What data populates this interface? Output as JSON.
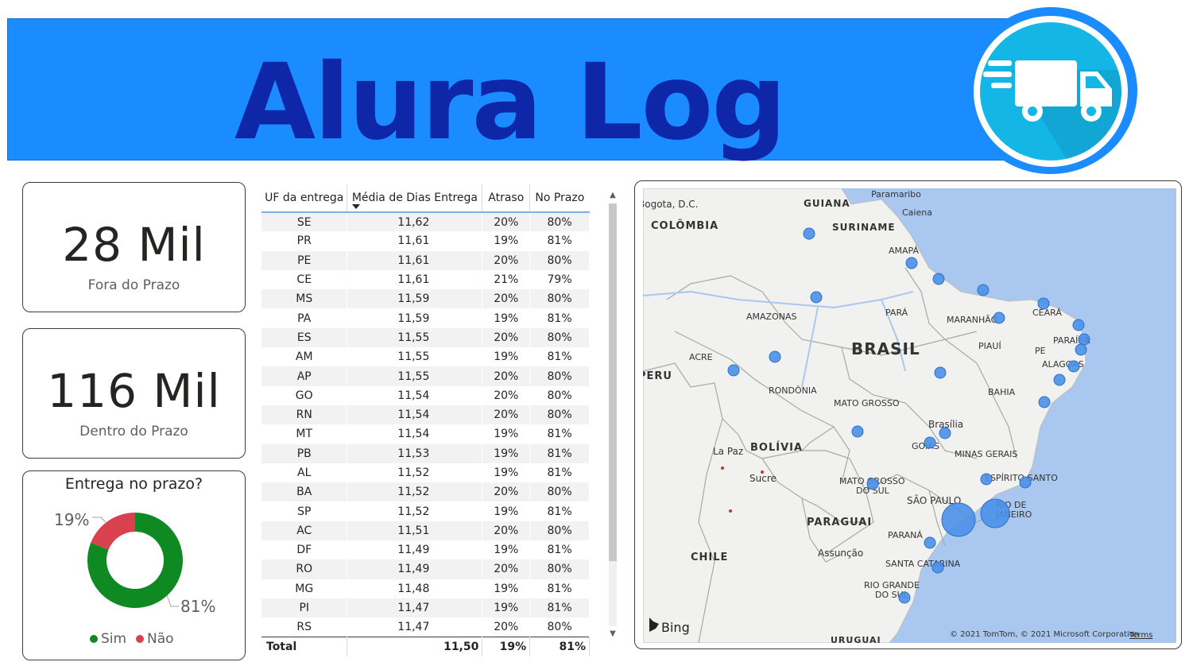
{
  "header": {
    "title": "Alura Log",
    "logo_icon": "delivery-truck-icon",
    "banner_color": "#1a8cff",
    "title_color": "#0e26a8"
  },
  "kpis": {
    "late": {
      "value": "28 Mil",
      "label": "Fora do Prazo"
    },
    "ontime": {
      "value": "116 Mil",
      "label": "Dentro do Prazo"
    }
  },
  "donut": {
    "title": "Entrega no prazo?",
    "slices": [
      {
        "name": "Sim",
        "percent": 81,
        "label": "81%",
        "color": "#0f8a23"
      },
      {
        "name": "Não",
        "percent": 19,
        "label": "19%",
        "color": "#d9414e"
      }
    ]
  },
  "table": {
    "columns": [
      "UF da entrega",
      "Média de Dias Entrega",
      "Atraso",
      "No Prazo"
    ],
    "rows": [
      [
        "SE",
        "11,62",
        "20%",
        "80%"
      ],
      [
        "PR",
        "11,61",
        "19%",
        "81%"
      ],
      [
        "PE",
        "11,61",
        "20%",
        "80%"
      ],
      [
        "CE",
        "11,61",
        "21%",
        "79%"
      ],
      [
        "MS",
        "11,59",
        "20%",
        "80%"
      ],
      [
        "PA",
        "11,59",
        "19%",
        "81%"
      ],
      [
        "ES",
        "11,55",
        "20%",
        "80%"
      ],
      [
        "AM",
        "11,55",
        "19%",
        "81%"
      ],
      [
        "AP",
        "11,55",
        "20%",
        "80%"
      ],
      [
        "GO",
        "11,54",
        "20%",
        "80%"
      ],
      [
        "RN",
        "11,54",
        "20%",
        "80%"
      ],
      [
        "MT",
        "11,54",
        "19%",
        "81%"
      ],
      [
        "PB",
        "11,53",
        "19%",
        "81%"
      ],
      [
        "AL",
        "11,52",
        "19%",
        "81%"
      ],
      [
        "BA",
        "11,52",
        "20%",
        "80%"
      ],
      [
        "SP",
        "11,52",
        "19%",
        "81%"
      ],
      [
        "AC",
        "11,51",
        "20%",
        "80%"
      ],
      [
        "DF",
        "11,49",
        "19%",
        "81%"
      ],
      [
        "RO",
        "11,49",
        "20%",
        "80%"
      ],
      [
        "MG",
        "11,48",
        "19%",
        "81%"
      ],
      [
        "PI",
        "11,47",
        "19%",
        "81%"
      ],
      [
        "RS",
        "11,47",
        "20%",
        "80%"
      ]
    ],
    "total": [
      "Total",
      "11,50",
      "19%",
      "81%"
    ]
  },
  "map": {
    "bubble_color": "#4a90e8",
    "bing_label": "Bing",
    "copyright": "© 2021 TomTom, © 2021 Microsoft Corporation",
    "terms": "Terms",
    "labels": [
      "Bogota, D.C.",
      "COLÔMBIA",
      "GUIANA",
      "Paramaribo",
      "Caiena",
      "SURINAME",
      "AMAPÁ",
      "AMAZONAS",
      "PARÁ",
      "MARANHÃO",
      "CEARÁ",
      "PARAÍBA",
      "PE",
      "PIAUÍ",
      "ALAGOAS",
      "BRASIL",
      "ACRE",
      "PERU",
      "RONDÔNIA",
      "MATO GROSSO",
      "BAHIA",
      "Brasília",
      "GOIÁS",
      "MINAS GERAIS",
      "La Paz",
      "BOLÍVIA",
      "Sucre",
      "MATO GROSSO",
      "DO SUL",
      "ESPÍRITO SANTO",
      "SÃO PAULO",
      "RIO DE",
      "JANEIRO",
      "PARAGUAI",
      "PARANÁ",
      "Assunção",
      "CHILE",
      "SANTA CATARINA",
      "RIO GRANDE",
      "DO SUL",
      "URUGUAI"
    ]
  }
}
